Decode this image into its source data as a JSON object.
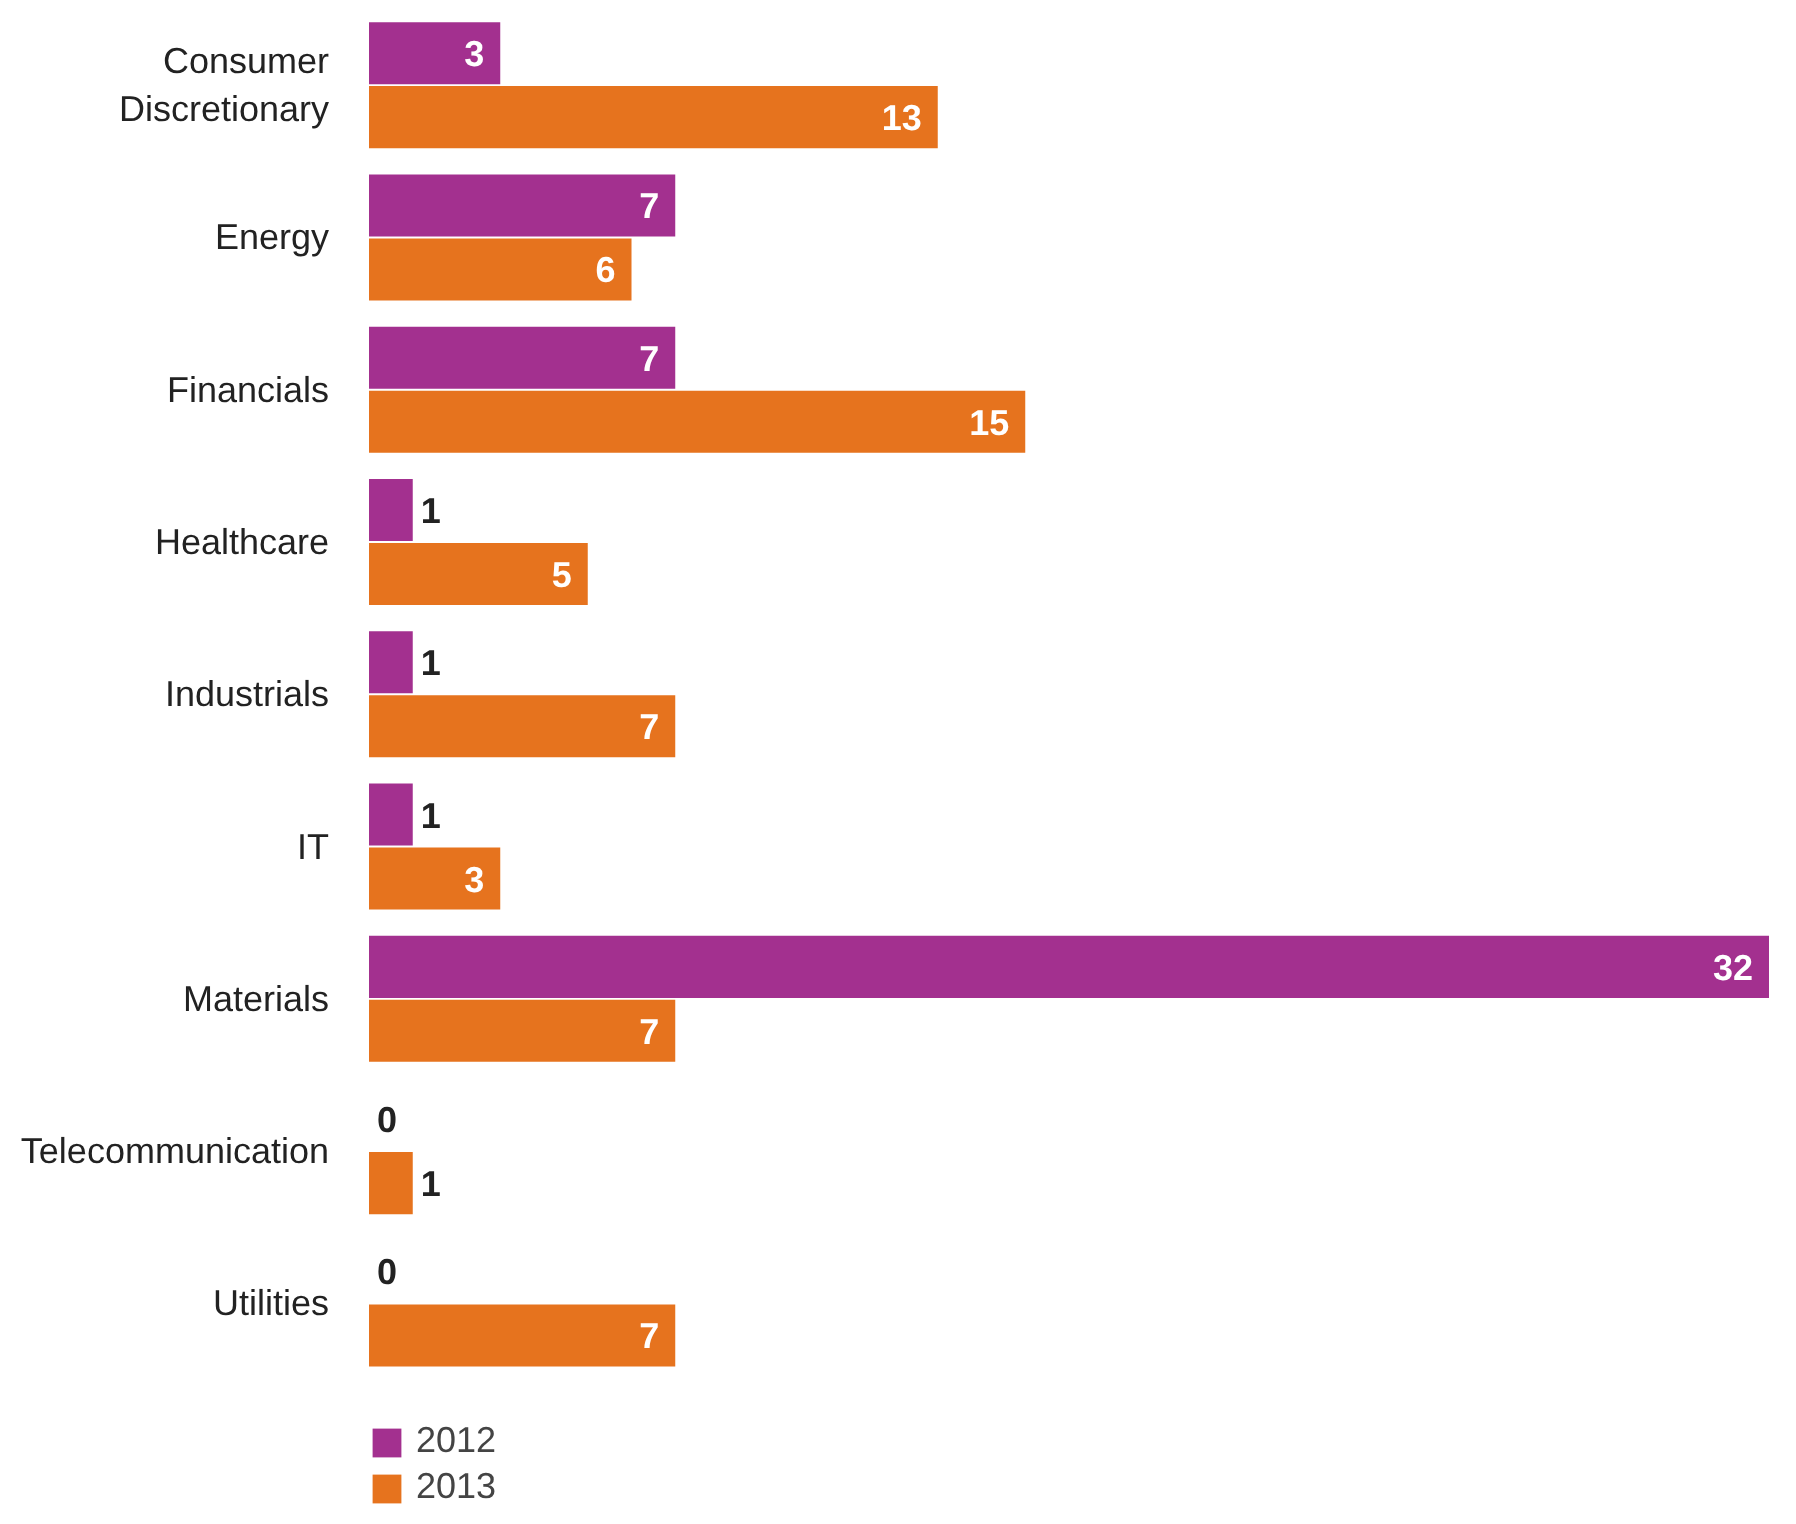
{
  "chart_data": {
    "type": "bar",
    "orientation": "horizontal",
    "categories": [
      "Consumer\nDiscretionary",
      "Energy",
      "Financials",
      "Healthcare",
      "Industrials",
      "IT",
      "Materials",
      "Telecommunication",
      "Utilities"
    ],
    "series": [
      {
        "name": "2012",
        "color": "#a3308f",
        "values": [
          3,
          7,
          7,
          1,
          1,
          1,
          32,
          0,
          0
        ]
      },
      {
        "name": "2013",
        "color": "#e6731e",
        "values": [
          13,
          6,
          15,
          5,
          7,
          3,
          7,
          1,
          7
        ]
      }
    ],
    "data_labels": true,
    "legend": "bottom left",
    "grid": false
  }
}
